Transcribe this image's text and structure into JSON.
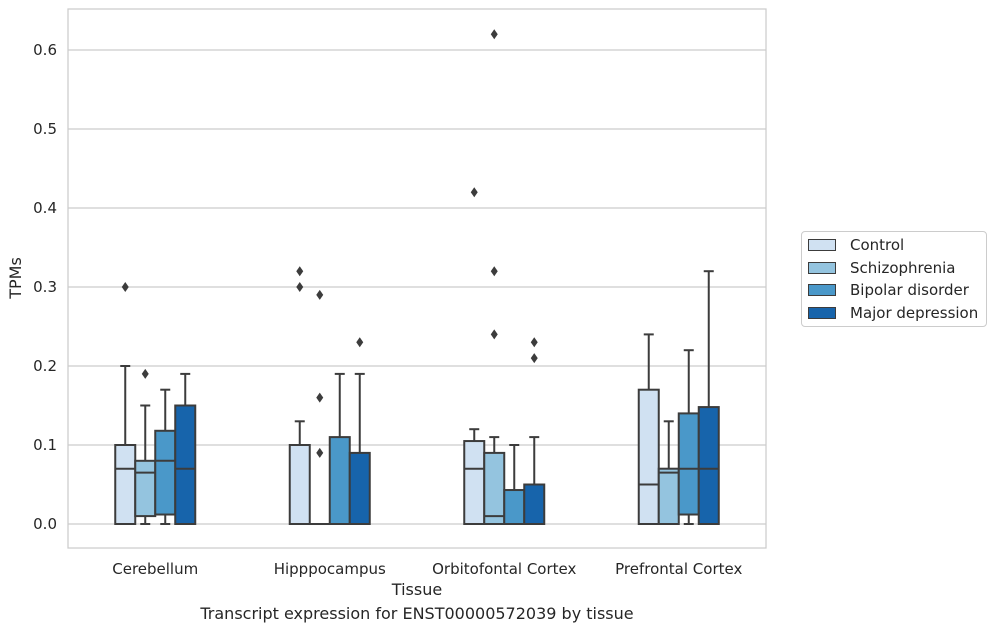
{
  "caption": "Transcript expression for ENST00000572039 by tissue",
  "chart_data": {
    "type": "box",
    "xlabel": "Tissue",
    "ylabel": "TPMs",
    "ylim": [
      -0.03,
      0.655
    ],
    "yticks": [
      "0.0",
      "0.1",
      "0.2",
      "0.3",
      "0.4",
      "0.5",
      "0.6"
    ],
    "grid": true,
    "legend_position": "right",
    "categories": [
      "Cerebellum",
      "Hipppocampus",
      "Orbitofontal Cortex",
      "Prefrontal Cortex"
    ],
    "series": [
      {
        "name": "Control",
        "color": "#d0e1f2",
        "boxes": [
          {
            "q1": 0.0,
            "median": 0.07,
            "q3": 0.1,
            "whisker_low": 0.0,
            "whisker_high": 0.2,
            "outliers": [
              0.3
            ]
          },
          {
            "q1": 0.0,
            "median": 0.0,
            "q3": 0.1,
            "whisker_low": 0.0,
            "whisker_high": 0.13,
            "outliers": [
              0.3,
              0.32
            ]
          },
          {
            "q1": 0.0,
            "median": 0.07,
            "q3": 0.105,
            "whisker_low": 0.0,
            "whisker_high": 0.12,
            "outliers": [
              0.42
            ]
          },
          {
            "q1": 0.0,
            "median": 0.05,
            "q3": 0.17,
            "whisker_low": 0.0,
            "whisker_high": 0.24,
            "outliers": []
          }
        ]
      },
      {
        "name": "Schizophrenia",
        "color": "#94c4df",
        "boxes": [
          {
            "q1": 0.01,
            "median": 0.065,
            "q3": 0.08,
            "whisker_low": 0.0,
            "whisker_high": 0.15,
            "outliers": [
              0.19
            ]
          },
          {
            "q1": 0.0,
            "median": 0.0,
            "q3": 0.0,
            "whisker_low": 0.0,
            "whisker_high": 0.0,
            "outliers": [
              0.09,
              0.16,
              0.29
            ]
          },
          {
            "q1": 0.0,
            "median": 0.01,
            "q3": 0.09,
            "whisker_low": 0.0,
            "whisker_high": 0.11,
            "outliers": [
              0.24,
              0.32,
              0.62
            ]
          },
          {
            "q1": 0.0,
            "median": 0.065,
            "q3": 0.07,
            "whisker_low": 0.0,
            "whisker_high": 0.13,
            "outliers": []
          }
        ]
      },
      {
        "name": "Bipolar disorder",
        "color": "#4a98c9",
        "boxes": [
          {
            "q1": 0.012,
            "median": 0.08,
            "q3": 0.118,
            "whisker_low": 0.0,
            "whisker_high": 0.17,
            "outliers": []
          },
          {
            "q1": 0.0,
            "median": 0.0,
            "q3": 0.11,
            "whisker_low": 0.0,
            "whisker_high": 0.19,
            "outliers": []
          },
          {
            "q1": 0.0,
            "median": 0.0,
            "q3": 0.043,
            "whisker_low": 0.0,
            "whisker_high": 0.1,
            "outliers": []
          },
          {
            "q1": 0.012,
            "median": 0.07,
            "q3": 0.14,
            "whisker_low": 0.0,
            "whisker_high": 0.22,
            "outliers": []
          }
        ]
      },
      {
        "name": "Major depression",
        "color": "#1764ab",
        "boxes": [
          {
            "q1": 0.0,
            "median": 0.07,
            "q3": 0.15,
            "whisker_low": 0.0,
            "whisker_high": 0.19,
            "outliers": []
          },
          {
            "q1": 0.0,
            "median": 0.0,
            "q3": 0.09,
            "whisker_low": 0.0,
            "whisker_high": 0.19,
            "outliers": [
              0.23
            ]
          },
          {
            "q1": 0.0,
            "median": 0.0,
            "q3": 0.05,
            "whisker_low": 0.0,
            "whisker_high": 0.11,
            "outliers": [
              0.21,
              0.23
            ]
          },
          {
            "q1": 0.0,
            "median": 0.07,
            "q3": 0.148,
            "whisker_low": 0.0,
            "whisker_high": 0.32,
            "outliers": []
          }
        ]
      }
    ]
  }
}
